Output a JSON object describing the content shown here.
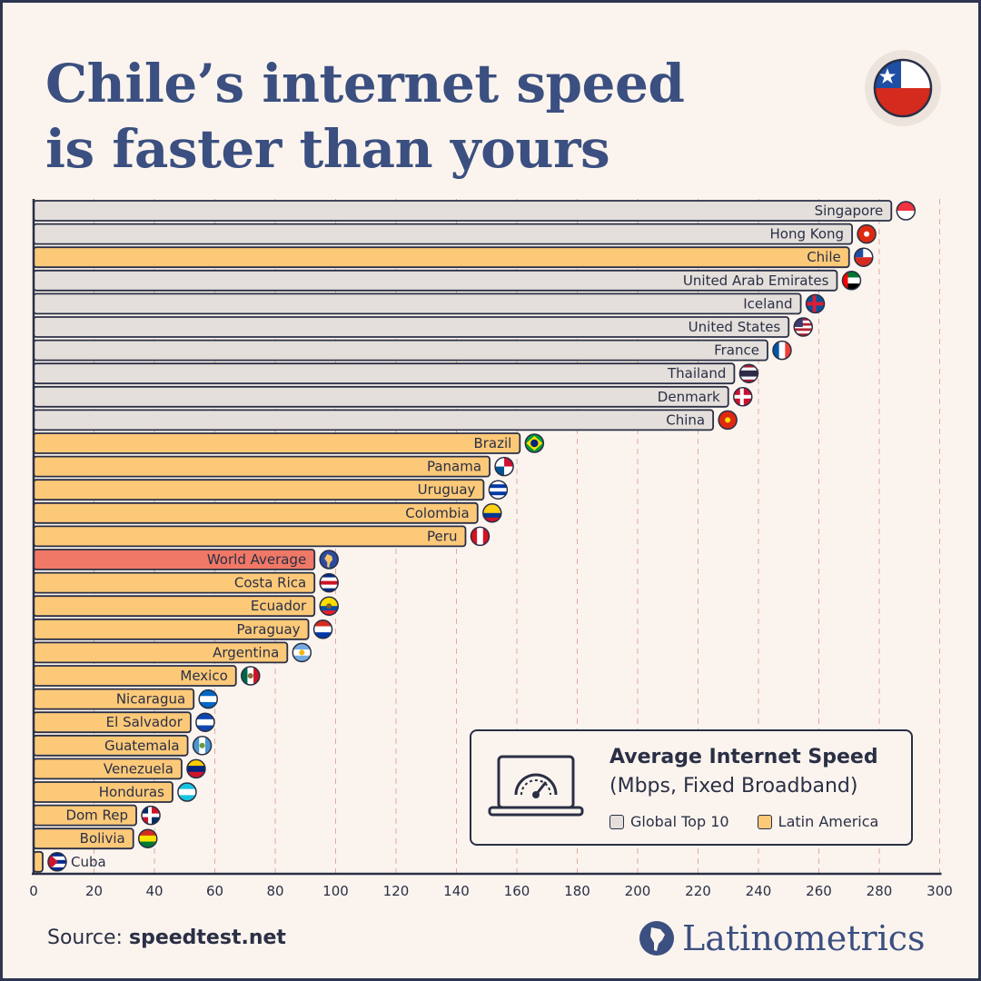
{
  "title": {
    "line1": "Chile’s internet speed",
    "line2": "is faster than yours"
  },
  "legend": {
    "title": "Average Internet Speed",
    "subtitle": "(Mbps, Fixed Broadband)",
    "items": [
      {
        "label": "Global Top 10",
        "color": "#e4dfdb"
      },
      {
        "label": "Latin America",
        "color": "#fcc979"
      }
    ]
  },
  "source": {
    "label": "Source:",
    "value": "speedtest.net"
  },
  "brand": {
    "name": "Latinometrics"
  },
  "colors": {
    "global": "#e4dfdb",
    "latam": "#fcc979",
    "world": "#f07866",
    "outline": "#2a2f45",
    "title": "#3b4f80"
  },
  "chart_data": {
    "type": "bar",
    "orientation": "horizontal",
    "title": "",
    "xlabel": "",
    "ylabel": "",
    "xlim": [
      0,
      300
    ],
    "xticks": [
      0,
      20,
      40,
      60,
      80,
      100,
      120,
      140,
      160,
      180,
      200,
      220,
      240,
      260,
      280,
      300
    ],
    "grid": "vertical dashed",
    "legend_position": "bottom-right",
    "categories": [
      "Singapore",
      "Hong Kong",
      "Chile",
      "United Arab Emirates",
      "Iceland",
      "United States",
      "France",
      "Thailand",
      "Denmark",
      "China",
      "Brazil",
      "Panama",
      "Uruguay",
      "Colombia",
      "Peru",
      "World Average",
      "Costa Rica",
      "Ecuador",
      "Paraguay",
      "Argentina",
      "Mexico",
      "Nicaragua",
      "El Salvador",
      "Guatemala",
      "Venezuela",
      "Honduras",
      "Dom Rep",
      "Bolivia",
      "Cuba"
    ],
    "values": [
      284,
      271,
      270,
      266,
      254,
      250,
      243,
      232,
      230,
      225,
      161,
      151,
      149,
      147,
      143,
      93,
      93,
      93,
      91,
      84,
      67,
      53,
      52,
      51,
      49,
      46,
      34,
      33,
      3
    ],
    "groups": [
      "global",
      "global",
      "latam",
      "global",
      "global",
      "global",
      "global",
      "global",
      "global",
      "global",
      "latam",
      "latam",
      "latam",
      "latam",
      "latam",
      "world",
      "latam",
      "latam",
      "latam",
      "latam",
      "latam",
      "latam",
      "latam",
      "latam",
      "latam",
      "latam",
      "latam",
      "latam",
      "latam"
    ],
    "flags": [
      "singapore-flag-icon",
      "hong-kong-flag-icon",
      "chile-flag-icon",
      "uae-flag-icon",
      "iceland-flag-icon",
      "usa-flag-icon",
      "france-flag-icon",
      "thailand-flag-icon",
      "denmark-flag-icon",
      "china-flag-icon",
      "brazil-flag-icon",
      "panama-flag-icon",
      "uruguay-flag-icon",
      "colombia-flag-icon",
      "peru-flag-icon",
      "globe-icon",
      "costa-rica-flag-icon",
      "ecuador-flag-icon",
      "paraguay-flag-icon",
      "argentina-flag-icon",
      "mexico-flag-icon",
      "nicaragua-flag-icon",
      "el-salvador-flag-icon",
      "guatemala-flag-icon",
      "venezuela-flag-icon",
      "honduras-flag-icon",
      "dominican-republic-flag-icon",
      "bolivia-flag-icon",
      "cuba-flag-icon"
    ]
  }
}
